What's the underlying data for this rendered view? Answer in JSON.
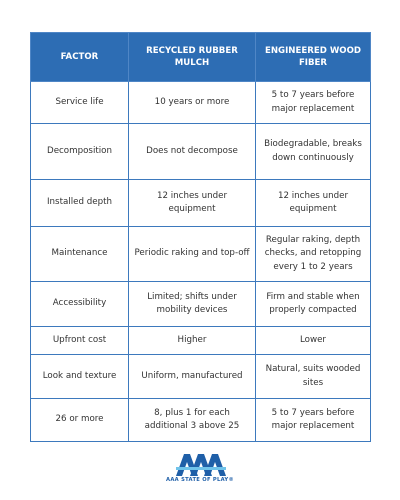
{
  "table": {
    "header": [
      "FACTOR",
      "RECYCLED RUBBER MULCH",
      "ENGINEERED WOOD FIBER"
    ],
    "rows": [
      [
        "Service life",
        "10 years or more",
        "5 to 7 years before major replacement"
      ],
      [
        "Decomposition",
        "Does not decompose",
        "Biodegradable, breaks down continuously"
      ],
      [
        "Installed depth",
        "12 inches under equipment",
        "12 inches under equipment"
      ],
      [
        "Maintenance",
        "Periodic raking and top-off",
        "Regular raking, depth checks, and retopping every 1 to 2 years"
      ],
      [
        "Accessibility",
        "Limited; shifts under mobility devices",
        "Firm and stable when properly compacted"
      ],
      [
        "Upfront cost",
        "Higher",
        "Lower"
      ],
      [
        "Look and texture",
        "Uniform, manufactured",
        "Natural, suits wooded sites"
      ],
      [
        "26 or more",
        "8, plus 1 for each additional 3 above 25",
        "5 to 7 years before major replacement"
      ]
    ]
  },
  "logo": {
    "text": "AAA STATE OF PLAY®"
  }
}
